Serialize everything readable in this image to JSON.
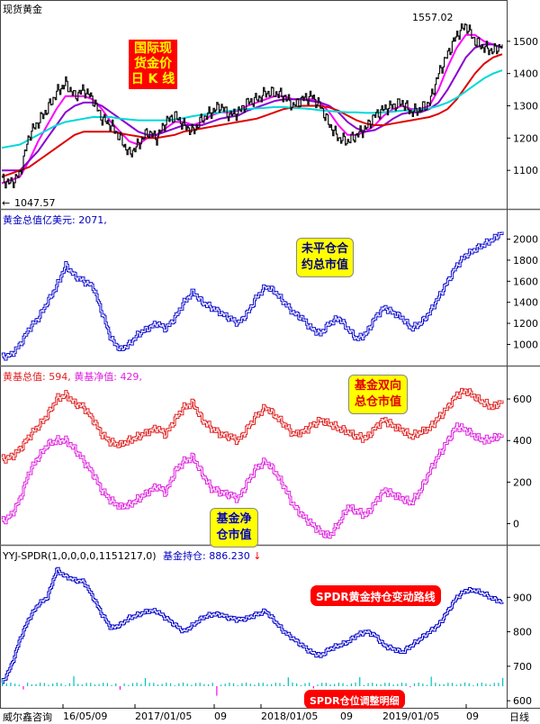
{
  "panel1": {
    "title": "现货黄金",
    "high_label": "1557.02",
    "low_label": "1047.57",
    "annotation": [
      "国际现",
      "货金价",
      "日 K 线"
    ],
    "colors": {
      "bg": "#ff0000",
      "text": "#ffff00"
    }
  },
  "panel2": {
    "header_label": "黄金总值亿美元:",
    "header_value": "2071,",
    "annotation": [
      "未平仓合",
      "约总市值"
    ],
    "colors": {
      "line": "#1010d0",
      "box_bg": "#ffff00",
      "box_text": "#000080"
    }
  },
  "panel3": {
    "header_label1": "黄基总值:",
    "header_value1": "594,",
    "header_label2": "黄基净值:",
    "header_value2": "429,",
    "annotation_top": [
      "基金双向",
      "总仓市值"
    ],
    "annotation_bottom": [
      "基金净",
      "仓市值"
    ],
    "colors": {
      "series1": "#e02020",
      "series2": "#e020e0",
      "box_bg": "#ffff00",
      "box_text": "#e00000",
      "box2_text": "#0000c0"
    }
  },
  "panel4": {
    "header_label": "YYJ-SPDR(1,0,0,0,0,1151217,0)",
    "header_label2": "基金持仓:",
    "header_value": "886.230",
    "arrow": "↓",
    "annotation_line": "SPDR黄金持仓变动路线",
    "annotation_detail": "SPDR仓位调整明细",
    "colors": {
      "line": "#0000cc",
      "bar": "#00c0c0",
      "bar_neg": "#ff00ff",
      "box_bg": "#ff0000",
      "box_text": "#ffffff"
    }
  },
  "footer": {
    "left": "威尔鑫咨询",
    "right": "日线",
    "x_ticks": [
      "16/05/09",
      "2017/01/05",
      "09",
      "2018/01/05",
      "09",
      "2019/01/05",
      "09"
    ]
  },
  "chart_data": [
    {
      "type": "line",
      "title": "现货黄金",
      "ylim": [
        1000,
        1600
      ],
      "yticks": [
        1100,
        1200,
        1300,
        1400,
        1500
      ],
      "series": [
        {
          "name": "price",
          "values": [
            1070,
            1060,
            1090,
            1210,
            1250,
            1290,
            1340,
            1370,
            1330,
            1350,
            1320,
            1260,
            1240,
            1200,
            1150,
            1180,
            1220,
            1200,
            1250,
            1270,
            1240,
            1220,
            1260,
            1280,
            1300,
            1270,
            1280,
            1310,
            1320,
            1340,
            1340,
            1330,
            1300,
            1320,
            1330,
            1300,
            1240,
            1200,
            1190,
            1210,
            1230,
            1270,
            1290,
            1300,
            1310,
            1280,
            1290,
            1310,
            1400,
            1460,
            1520,
            1550,
            1500,
            1480,
            1470,
            1490
          ]
        },
        {
          "values": [
            1060,
            1070,
            1080,
            1130,
            1190,
            1240,
            1290,
            1330,
            1330,
            1330,
            1320,
            1290,
            1250,
            1220,
            1190,
            1180,
            1200,
            1210,
            1230,
            1250,
            1250,
            1240,
            1250,
            1270,
            1280,
            1280,
            1285,
            1300,
            1310,
            1320,
            1330,
            1330,
            1320,
            1320,
            1320,
            1310,
            1280,
            1240,
            1210,
            1210,
            1220,
            1240,
            1270,
            1290,
            1300,
            1290,
            1290,
            1300,
            1350,
            1420,
            1480,
            1520,
            1520,
            1500,
            1490,
            1480
          ]
        },
        {
          "values": [
            1100,
            1100,
            1100,
            1130,
            1160,
            1200,
            1240,
            1280,
            1300,
            1310,
            1310,
            1300,
            1280,
            1260,
            1240,
            1220,
            1210,
            1210,
            1220,
            1230,
            1240,
            1240,
            1240,
            1250,
            1260,
            1265,
            1270,
            1285,
            1295,
            1305,
            1315,
            1320,
            1320,
            1320,
            1315,
            1310,
            1300,
            1280,
            1250,
            1230,
            1220,
            1225,
            1240,
            1260,
            1275,
            1280,
            1280,
            1290,
            1310,
            1350,
            1400,
            1450,
            1480,
            1490,
            1490,
            1480
          ]
        },
        {
          "values": [
            1080,
            1090,
            1100,
            1110,
            1130,
            1150,
            1170,
            1190,
            1210,
            1220,
            1220,
            1220,
            1220,
            1215,
            1210,
            1205,
            1200,
            1200,
            1205,
            1210,
            1220,
            1225,
            1230,
            1235,
            1240,
            1245,
            1250,
            1255,
            1260,
            1270,
            1280,
            1290,
            1295,
            1300,
            1300,
            1300,
            1295,
            1285,
            1270,
            1255,
            1245,
            1240,
            1240,
            1245,
            1250,
            1255,
            1260,
            1265,
            1275,
            1290,
            1320,
            1360,
            1400,
            1430,
            1450,
            1460
          ]
        },
        {
          "values": [
            1170,
            1175,
            1180,
            1195,
            1210,
            1225,
            1240,
            1250,
            1255,
            1260,
            1265,
            1265,
            1265,
            1260,
            1258,
            1255,
            1255,
            1255,
            1255,
            1258,
            1262,
            1268,
            1272,
            1276,
            1280,
            1284,
            1288,
            1290,
            1292,
            1294,
            1296,
            1296,
            1294,
            1292,
            1290,
            1286,
            1284,
            1282,
            1280,
            1280,
            1278,
            1278,
            1280,
            1282,
            1285,
            1286,
            1288,
            1292,
            1300,
            1310,
            1325,
            1345,
            1365,
            1385,
            1400,
            1410
          ]
        }
      ]
    },
    {
      "type": "line",
      "title": "黄金总值亿美元",
      "ylim": [
        850,
        2150
      ],
      "yticks": [
        1000,
        1200,
        1400,
        1600,
        1800,
        2000
      ],
      "series": [
        {
          "name": "黄金总值",
          "values": [
            880,
            900,
            1000,
            1150,
            1250,
            1400,
            1550,
            1750,
            1650,
            1600,
            1550,
            1300,
            1050,
            950,
            1000,
            1100,
            1150,
            1200,
            1150,
            1250,
            1400,
            1500,
            1400,
            1350,
            1300,
            1250,
            1200,
            1300,
            1450,
            1550,
            1500,
            1400,
            1300,
            1250,
            1150,
            1100,
            1200,
            1250,
            1150,
            1050,
            1100,
            1250,
            1350,
            1300,
            1250,
            1150,
            1200,
            1300,
            1450,
            1600,
            1750,
            1850,
            1900,
            1950,
            2000,
            2071
          ]
        }
      ]
    },
    {
      "type": "line",
      "title": "黄基总值 / 黄基净值",
      "ylim": [
        -80,
        700
      ],
      "yticks": [
        0,
        200,
        400,
        600
      ],
      "series": [
        {
          "name": "黄基总值",
          "values": [
            310,
            320,
            360,
            420,
            470,
            520,
            600,
            620,
            580,
            560,
            500,
            430,
            390,
            380,
            400,
            420,
            440,
            460,
            430,
            500,
            560,
            580,
            500,
            460,
            430,
            420,
            400,
            460,
            520,
            560,
            520,
            480,
            430,
            440,
            470,
            500,
            480,
            460,
            440,
            420,
            410,
            460,
            500,
            470,
            450,
            420,
            440,
            460,
            510,
            560,
            620,
            640,
            610,
            580,
            560,
            594
          ]
        },
        {
          "name": "黄基净值",
          "values": [
            10,
            40,
            120,
            250,
            320,
            380,
            400,
            400,
            360,
            300,
            240,
            160,
            110,
            80,
            90,
            120,
            150,
            180,
            150,
            250,
            300,
            320,
            240,
            170,
            150,
            140,
            120,
            200,
            270,
            300,
            250,
            180,
            90,
            40,
            0,
            -40,
            -60,
            0,
            80,
            60,
            40,
            100,
            160,
            140,
            120,
            100,
            160,
            250,
            330,
            400,
            470,
            450,
            420,
            400,
            410,
            429
          ]
        }
      ]
    },
    {
      "type": "line",
      "title": "SPDR基金持仓",
      "ylim": [
        590,
        1000
      ],
      "yticks": [
        600,
        700,
        800,
        900
      ],
      "series": [
        {
          "name": "基金持仓",
          "values": [
            650,
            700,
            780,
            840,
            880,
            900,
            980,
            960,
            950,
            945,
            900,
            850,
            810,
            820,
            840,
            850,
            860,
            860,
            840,
            820,
            800,
            820,
            840,
            850,
            850,
            840,
            835,
            840,
            850,
            860,
            830,
            800,
            780,
            760,
            740,
            730,
            750,
            760,
            770,
            790,
            800,
            790,
            760,
            750,
            740,
            760,
            780,
            800,
            820,
            860,
            900,
            920,
            920,
            910,
            895,
            886
          ]
        }
      ]
    }
  ]
}
